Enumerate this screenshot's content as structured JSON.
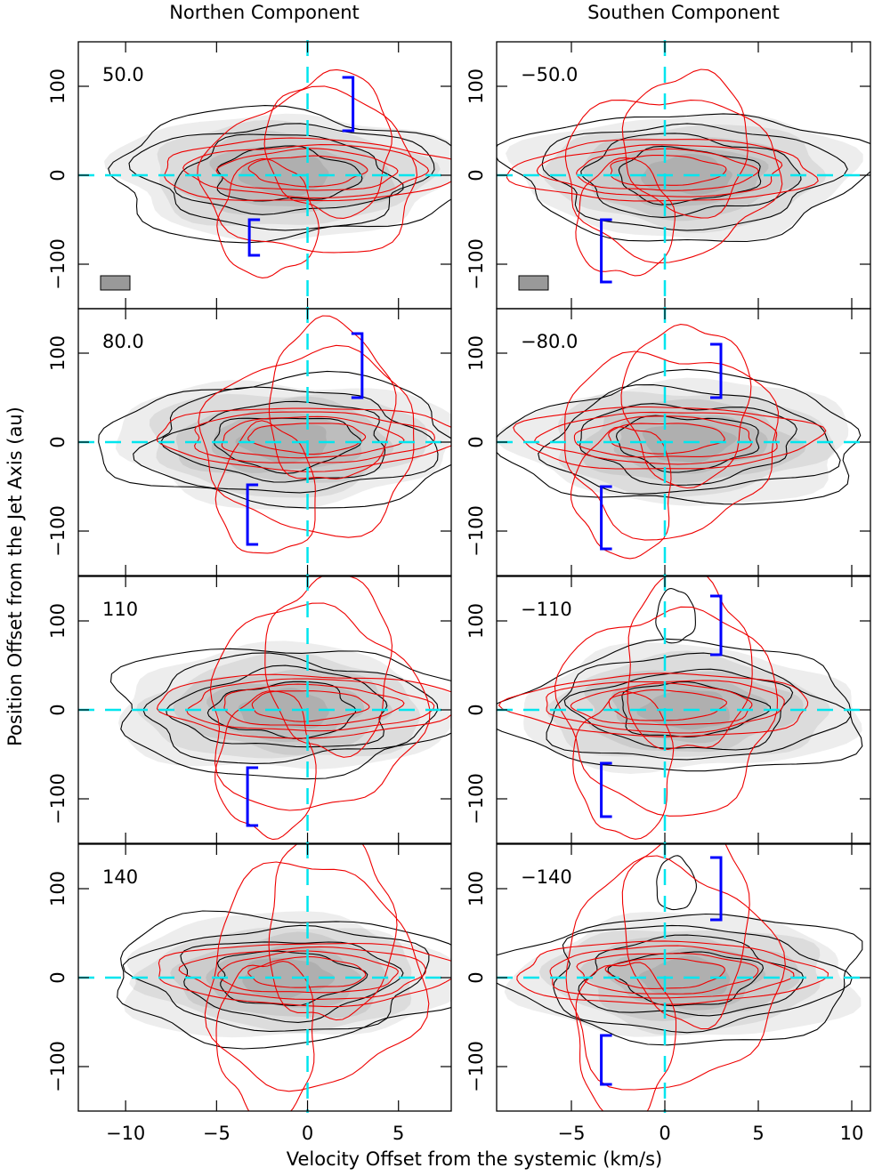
{
  "figure": {
    "column_titles": [
      "Northen Component",
      "Southen Component"
    ],
    "x_label": "Velocity Offset from the systemic (km/s)",
    "y_label": "Position Offset from the Jet Axis (au)"
  },
  "chart_data": [
    {
      "type": "contour",
      "label": "50.0",
      "xlim": [
        -12.6,
        7.9
      ],
      "ylim": [
        -150,
        150
      ],
      "xticks": [
        {
          "value": -10,
          "label": "−10"
        },
        {
          "value": -5,
          "label": "−5"
        },
        0,
        5
      ],
      "yticks": [
        {
          "value": -100,
          "label": "−100"
        },
        0,
        100
      ],
      "brackets": [
        {
          "x": 2.5,
          "y": [
            50,
            110
          ]
        },
        {
          "x": -3.2,
          "y": [
            -50,
            -90
          ]
        }
      ]
    },
    {
      "type": "contour",
      "label": "−50.0",
      "xlim": [
        -9,
        11
      ],
      "ylim": [
        -150,
        150
      ],
      "xticks": [
        {
          "value": -5,
          "label": "−5"
        },
        0,
        5,
        10
      ],
      "yticks": [
        {
          "value": -100,
          "label": "−100"
        },
        0,
        100
      ],
      "brackets": [
        {
          "x": -3.4,
          "y": [
            -50,
            -120
          ]
        }
      ]
    },
    {
      "type": "contour",
      "label": "80.0",
      "xlim": [
        -12.6,
        7.9
      ],
      "ylim": [
        -150,
        150
      ],
      "xticks": [
        {
          "value": -10,
          "label": "−10"
        },
        {
          "value": -5,
          "label": "−5"
        },
        0,
        5
      ],
      "yticks": [
        {
          "value": -100,
          "label": "−100"
        },
        0,
        100
      ],
      "brackets": [
        {
          "x": 3.0,
          "y": [
            50,
            122
          ]
        },
        {
          "x": -3.3,
          "y": [
            -48,
            -115
          ]
        }
      ]
    },
    {
      "type": "contour",
      "label": "−80.0",
      "xlim": [
        -9,
        11
      ],
      "ylim": [
        -150,
        150
      ],
      "xticks": [
        {
          "value": -5,
          "label": "−5"
        },
        0,
        5,
        10
      ],
      "yticks": [
        {
          "value": -100,
          "label": "−100"
        },
        0,
        100
      ],
      "brackets": [
        {
          "x": 3.0,
          "y": [
            50,
            110
          ]
        },
        {
          "x": -3.4,
          "y": [
            -50,
            -120
          ]
        }
      ]
    },
    {
      "type": "contour",
      "label": "110",
      "xlim": [
        -12.6,
        7.9
      ],
      "ylim": [
        -150,
        150
      ],
      "xticks": [
        {
          "value": -10,
          "label": "−10"
        },
        {
          "value": -5,
          "label": "−5"
        },
        0,
        5
      ],
      "yticks": [
        {
          "value": -100,
          "label": "−100"
        },
        0,
        100
      ],
      "brackets": [
        {
          "x": -3.3,
          "y": [
            -65,
            -130
          ]
        }
      ]
    },
    {
      "type": "contour",
      "label": "−110",
      "xlim": [
        -9,
        11
      ],
      "ylim": [
        -150,
        150
      ],
      "xticks": [
        {
          "value": -5,
          "label": "−5"
        },
        0,
        5,
        10
      ],
      "yticks": [
        {
          "value": -100,
          "label": "−100"
        },
        0,
        100
      ],
      "brackets": [
        {
          "x": 3.0,
          "y": [
            62,
            128
          ]
        },
        {
          "x": -3.4,
          "y": [
            -60,
            -120
          ]
        }
      ]
    },
    {
      "type": "contour",
      "label": "140",
      "xlim": [
        -12.6,
        7.9
      ],
      "ylim": [
        -150,
        150
      ],
      "xticks": [
        {
          "value": -10,
          "label": "−10"
        },
        {
          "value": -5,
          "label": "−5"
        },
        0,
        5
      ],
      "yticks": [
        {
          "value": -100,
          "label": "−100"
        },
        0,
        100
      ],
      "brackets": []
    },
    {
      "type": "contour",
      "label": "−140",
      "xlim": [
        -9,
        11
      ],
      "ylim": [
        -150,
        150
      ],
      "xticks": [
        {
          "value": -5,
          "label": "−5"
        },
        0,
        5,
        10
      ],
      "yticks": [
        {
          "value": -100,
          "label": "−100"
        },
        0,
        100
      ],
      "brackets": [
        {
          "x": 3.0,
          "y": [
            65,
            135
          ]
        },
        {
          "x": -3.4,
          "y": [
            -65,
            -120
          ]
        }
      ]
    }
  ]
}
